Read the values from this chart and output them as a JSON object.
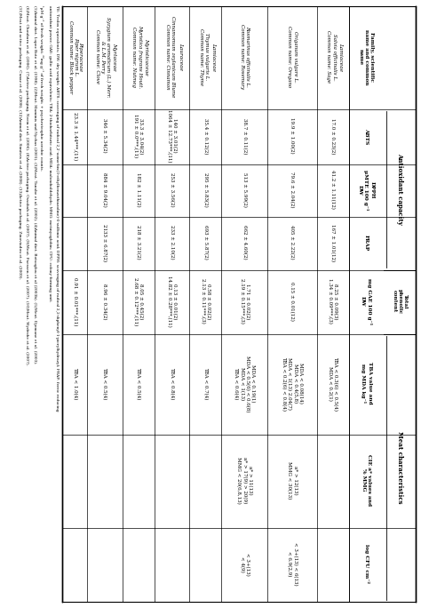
{
  "rows": [
    {
      "family": "Lamiaceae",
      "species": "Salvia officinalis L.\nCommon name: Sage",
      "abts": "17.0 ± 0.23(2)",
      "dpph": "41.2 ± 1.11(12)",
      "frap": "167 ± 1.01(12)",
      "phenolic": "8.25 ± 0.09(3)\n1.34 ± 0.09***,(3)",
      "lipid": "TBA < 0.3(6) < 0.5(4)\nMDA < 0.2(1)",
      "color": "",
      "antimicrobial": ""
    },
    {
      "family": "",
      "species": "Origanum vulgare L.\nCommon name: Oregano",
      "abts": "19.9 ± 1.00(2)",
      "dpph": "79.6 ± 2.04(2)",
      "frap": "405 ± 2.22(2)",
      "phenolic": "0.15 ± 0.01(12)",
      "lipid": "MDA < 0.08(14)\nMDA < 0.4(5,8)\nMDA < 1(13) 2.04(7)\nTBA < 0.2(6) < 0.8(4)",
      "color": "a* > 12(13)\nMMG < 30(13)",
      "antimicrobial": "< 3+(13) < 6(13)\n< 6.9(2,9)"
    },
    {
      "family": "",
      "species": "Rosmarinus officinalis L.\nCommon name: Rosemary",
      "abts": "38.7 ± 0.11(2)",
      "dpph": "513 ± 5.99(2)",
      "frap": "662 ± 4.60(2)",
      "phenolic": "1.71 ± 0.02(2)\n2.19 ± 0.15***,(3)",
      "lipid": "MDA < 0.19(1)\nMDA < 0.5(6) < 0.6(8)\nMDA < 1(13)\nTBA < 0.6(4)",
      "color": "a* > 11(13)\na* > 17(9) > 20(9)\nMMG < 20(6,8,13)",
      "antimicrobial": "< 3+(13)\n< 4(9)"
    },
    {
      "family": "Lamiaceae",
      "species": "Thymus vulgaris L.\nCommon name: Thyme",
      "abts": "35.4 ± 0.12(2)",
      "dpph": "295 ± 5.83(2)",
      "frap": "693 ± 5.87(2)",
      "phenolic": "0.58 ± 0.02(2)\n2.13 ± 0.11***,(3)",
      "lipid": "TBA < 0.7(4)",
      "color": "",
      "antimicrobial": ""
    },
    {
      "family": "Lauraceae",
      "species": "Cinnamomum zeylanicum Blume\nCommon name: Cinnamon",
      "abts": "140 ± 3.01(2)\n1064 ± 12.73***,(11)",
      "dpph": "253 ± 3.56(2)",
      "frap": "233 ± 2.10(2)",
      "phenolic": "0.13 ± 0.01(2)\n14.82 ± 0.28***,(11)",
      "lipid": "TBA < 0.8(4)",
      "color": "",
      "antimicrobial": ""
    },
    {
      "family": "Myristicaceae",
      "species": "Myristica fragrans Houtt.\nCommon name: Nutmeg",
      "abts": "33.3 ± 3.04(2)\n191 ± 0.0***,(11)",
      "dpph": "182 ± 1.11(2)",
      "frap": "218 ± 3.21(2)",
      "phenolic": "8.05 ± 0.45(2)\n2.68 ± 0.12***,(11)",
      "lipid": "TBA < 0.5(4)",
      "color": "",
      "antimicrobial": ""
    },
    {
      "family": "Myrtaceae",
      "species": "Syzygium aromaticum (L.) Merr.\n& L.M. Perry\nCommon name: Clove",
      "abts": "346 ± 5.34(2)",
      "dpph": "884 ± 9.04(2)",
      "frap": "2133 ± 6.87(2)",
      "phenolic": "8.96 ± 0.34(2)",
      "lipid": "TBA < 0.5(4)",
      "color": "",
      "antimicrobial": ""
    },
    {
      "family": "Piperaceae",
      "species": "Piper nigrum L.\nCommon name: Black pepper",
      "abts": "23.3 ± 1.44***,(11)",
      "dpph": "",
      "frap": "",
      "phenolic": "0.91 ± 0.01***,(11)",
      "lipid": "TBA < 1.0(4)",
      "color": "",
      "antimicrobial": ""
    }
  ]
}
